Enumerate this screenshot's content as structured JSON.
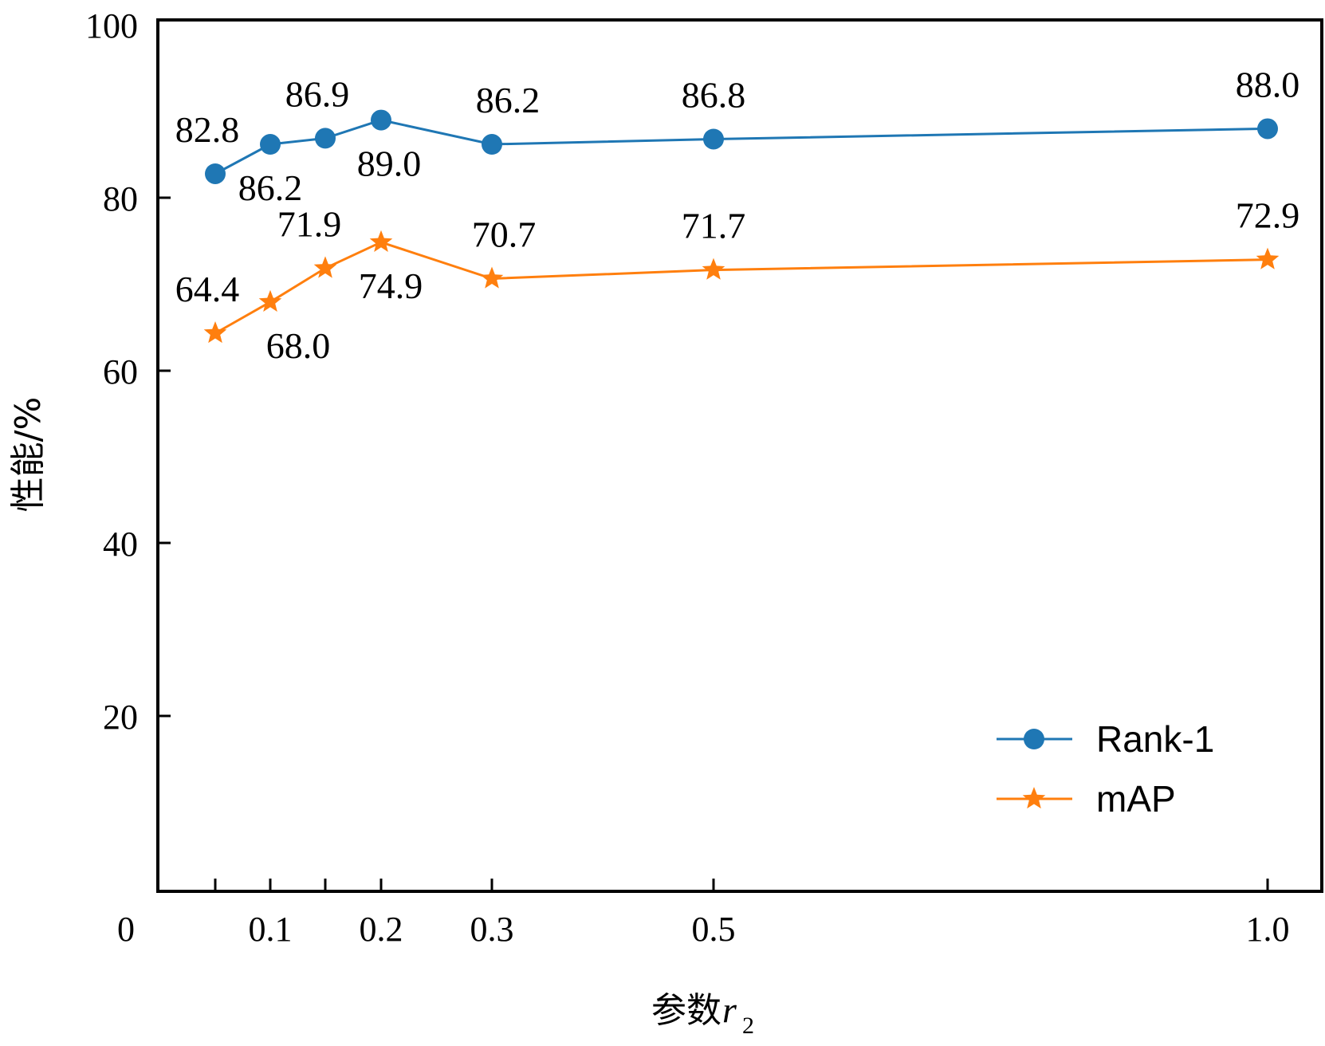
{
  "chart_data": {
    "type": "line",
    "title": "",
    "xlabel_prefix": "参数",
    "xlabel_var": "r",
    "xlabel_sub": "2",
    "ylabel": "性能/%",
    "x_origin_label": "0",
    "x_ticks": [
      {
        "pos": 0.05,
        "label": ""
      },
      {
        "pos": 0.1,
        "label": "0.1"
      },
      {
        "pos": 0.15,
        "label": ""
      },
      {
        "pos": 0.2,
        "label": "0.2"
      },
      {
        "pos": 0.3,
        "label": "0.3"
      },
      {
        "pos": 0.5,
        "label": "0.5"
      },
      {
        "pos": 1.0,
        "label": "1.0"
      }
    ],
    "y_ticks": [
      "20",
      "40",
      "60",
      "80",
      "100"
    ],
    "ylim": [
      0,
      100
    ],
    "series": [
      {
        "name": "Rank-1",
        "color": "#1f77b4",
        "marker": "circle",
        "x": [
          0.05,
          0.1,
          0.15,
          0.2,
          0.3,
          0.5,
          1.0
        ],
        "y": [
          82.8,
          86.2,
          86.9,
          89.0,
          86.2,
          86.8,
          88.0
        ],
        "labels": [
          "82.8",
          "86.2",
          "86.9",
          "89.0",
          "86.2",
          "86.8",
          "88.0"
        ]
      },
      {
        "name": "mAP",
        "color": "#ff7f0e",
        "marker": "star",
        "x": [
          0.05,
          0.1,
          0.15,
          0.2,
          0.3,
          0.5,
          1.0
        ],
        "y": [
          64.4,
          68.0,
          71.9,
          74.9,
          70.7,
          71.7,
          72.9
        ],
        "labels": [
          "64.4",
          "68.0",
          "71.9",
          "74.9",
          "70.7",
          "71.7",
          "72.9"
        ]
      }
    ],
    "legend_position": "bottom-right"
  }
}
